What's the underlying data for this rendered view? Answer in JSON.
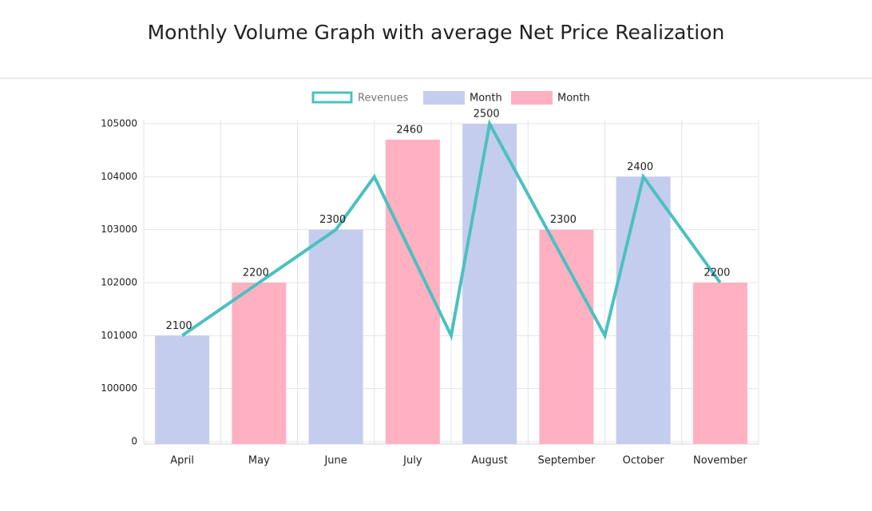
{
  "chart_data": {
    "type": "bar",
    "title": "Monthly Volume Graph with average Net  Price Realization",
    "categories": [
      "April",
      "May",
      "June",
      "July",
      "August",
      "September",
      "October",
      "November"
    ],
    "series": [
      {
        "name": "Month",
        "color": "#c5cdef",
        "values": [
          101000,
          null,
          103000,
          null,
          105000,
          null,
          104000,
          null
        ],
        "labels": [
          2100,
          null,
          2300,
          null,
          2500,
          null,
          2400,
          null
        ]
      },
      {
        "name": "Month",
        "color": "#ffb1c1",
        "values": [
          null,
          102000,
          null,
          104700,
          null,
          103000,
          null,
          102000
        ],
        "labels": [
          null,
          2200,
          null,
          2460,
          null,
          2300,
          null,
          2200
        ]
      }
    ],
    "line": {
      "name": "Revenues",
      "color": "#4bc0c0",
      "x": [
        0,
        1,
        2,
        2.5,
        3.5,
        4,
        5.5,
        6,
        7
      ],
      "values": [
        101000,
        102000,
        103000,
        104000,
        101000,
        105000,
        101000,
        104000,
        102000
      ]
    },
    "ylim": [
      0,
      105000
    ],
    "yticks": [
      0,
      100000,
      101000,
      102000,
      103000,
      104000,
      105000
    ],
    "grid": true
  }
}
